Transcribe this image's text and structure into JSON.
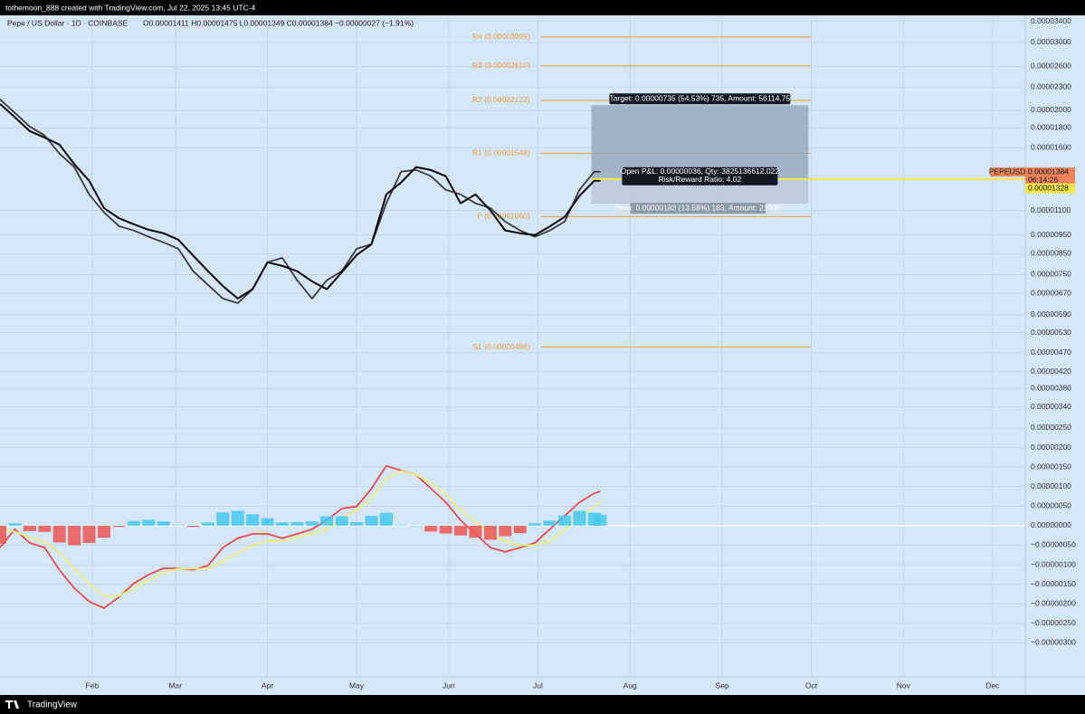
{
  "header": {
    "author_line": "tothemoon_888 created with TradingView.com, Jul 22, 2025 13:45 UTC-4"
  },
  "chart_data": {
    "type": "line",
    "title": "Pepe / US Dollar · 1D · COINBASE",
    "ohlc_text": "O0.00001411 H0.00001475 L0.00001349 C0.00001384 −0.00000027 (−1.91%)",
    "log_scale": true,
    "grid": true,
    "x": [
      "2025-01-01",
      "2025-01-06",
      "2025-01-11",
      "2025-01-16",
      "2025-01-21",
      "2025-01-26",
      "2025-01-31",
      "2025-02-05",
      "2025-02-10",
      "2025-02-15",
      "2025-02-20",
      "2025-02-25",
      "2025-03-02",
      "2025-03-07",
      "2025-03-12",
      "2025-03-17",
      "2025-03-22",
      "2025-03-27",
      "2025-04-01",
      "2025-04-06",
      "2025-04-11",
      "2025-04-16",
      "2025-04-21",
      "2025-04-26",
      "2025-05-01",
      "2025-05-06",
      "2025-05-11",
      "2025-05-16",
      "2025-05-21",
      "2025-05-26",
      "2025-05-31",
      "2025-06-05",
      "2025-06-10",
      "2025-06-15",
      "2025-06-20",
      "2025-06-25",
      "2025-06-30",
      "2025-07-05",
      "2025-07-10",
      "2025-07-15",
      "2025-07-20",
      "2025-07-22"
    ],
    "xlim": [
      "2025-01-01",
      "2025-12-12"
    ],
    "xticks": [
      {
        "value": "2025-02-01",
        "label": "Feb"
      },
      {
        "value": "2025-03-01",
        "label": "Mar"
      },
      {
        "value": "2025-04-01",
        "label": "Apr"
      },
      {
        "value": "2025-05-01",
        "label": "May"
      },
      {
        "value": "2025-06-01",
        "label": "Jun"
      },
      {
        "value": "2025-07-01",
        "label": "Jul"
      },
      {
        "value": "2025-08-01",
        "label": "Aug"
      },
      {
        "value": "2025-09-01",
        "label": "Sep"
      },
      {
        "value": "2025-10-01",
        "label": "Oct"
      },
      {
        "value": "2025-11-01",
        "label": "Nov"
      },
      {
        "value": "2025-12-01",
        "label": "Dec"
      }
    ],
    "ylim": [
      6.78e-07,
      3.527e-05
    ],
    "yticks": [
      {
        "value": 3.4e-05,
        "label": "0.00003400"
      },
      {
        "value": 3e-05,
        "label": "0.00003000"
      },
      {
        "value": 2.6e-05,
        "label": "0.00002600"
      },
      {
        "value": 2.3e-05,
        "label": "0.00002300"
      },
      {
        "value": 2e-05,
        "label": "0.00002000"
      },
      {
        "value": 1.8e-05,
        "label": "0.00001800"
      },
      {
        "value": 1.6e-05,
        "label": "0.00001600"
      },
      {
        "value": 1.1e-05,
        "label": "0.00001100"
      },
      {
        "value": 9.5e-06,
        "label": "0.00000950"
      },
      {
        "value": 8.5e-06,
        "label": "0.00000850"
      },
      {
        "value": 7.5e-06,
        "label": "0.00000750"
      },
      {
        "value": 6.7e-06,
        "label": "0.00000670"
      },
      {
        "value": 5.9e-06,
        "label": "0.00000590"
      },
      {
        "value": 5.3e-06,
        "label": "0.00000530"
      },
      {
        "value": 4.7e-06,
        "label": "0.00000470"
      },
      {
        "value": 4.2e-06,
        "label": "0.00000420"
      },
      {
        "value": 3.8e-06,
        "label": "0.00000380"
      },
      {
        "value": 3.4e-06,
        "label": "0.00000340"
      }
    ],
    "y2lim": [
      -3.87e-06,
      1.306e-05
    ],
    "y2ticks": [
      {
        "value": 2.5e-06,
        "label": "0.00000250"
      },
      {
        "value": 2e-06,
        "label": "0.00000200"
      },
      {
        "value": 1.5e-06,
        "label": "0.00000150"
      },
      {
        "value": 1e-06,
        "label": "0.00000100"
      },
      {
        "value": 5e-07,
        "label": "0.00000050"
      },
      {
        "value": 0,
        "label": "0.00000000"
      },
      {
        "value": -5e-07,
        "label": "−0.00000050"
      },
      {
        "value": -1e-06,
        "label": "−0.00000100"
      },
      {
        "value": -1.5e-06,
        "label": "−0.00000150"
      },
      {
        "value": -2e-06,
        "label": "−0.00000200"
      },
      {
        "value": -2.5e-06,
        "label": "−0.00000250"
      },
      {
        "value": -3e-06,
        "label": "−0.00000300"
      }
    ],
    "series": [
      {
        "name": "PEPEUSD",
        "color": "#3a3a3a",
        "values": [
          2.136e-05,
          1.97e-05,
          1.816e-05,
          1.721e-05,
          1.545e-05,
          1.425e-05,
          1.211e-05,
          1.087e-05,
          1.002e-05,
          9.76e-06,
          9.4e-06,
          9.09e-06,
          8.75e-06,
          7.65e-06,
          7.05e-06,
          6.5e-06,
          6.32e-06,
          6.87e-06,
          8.07e-06,
          8.29e-06,
          7.25e-06,
          6.5e-06,
          7.25e-06,
          7.65e-06,
          8.75e-06,
          8.99e-06,
          1.148e-05,
          1.387e-05,
          1.402e-05,
          1.35e-05,
          1.244e-05,
          1.211e-05,
          1.148e-05,
          1.116e-05,
          1.029e-05,
          9.76e-06,
          9.4e-06,
          9.76e-06,
          1.029e-05,
          1.244e-05,
          1.387e-05,
          1.384e-05
        ]
      },
      {
        "color": "#000000",
        "values": [
          2.079e-05,
          1.92e-05,
          1.768e-05,
          1.7e-05,
          1.63e-05,
          1.45e-05,
          1.314e-05,
          1.116e-05,
          1.05e-05,
          1.013e-05,
          9.8e-06,
          9.6e-06,
          9.24e-06,
          8.4e-06,
          7.65e-06,
          7e-06,
          6.5e-06,
          6.87e-06,
          8.07e-06,
          7.9e-06,
          7.65e-06,
          7.2e-06,
          6.87e-06,
          7.6e-06,
          8.43e-06,
          8.99e-06,
          1.211e-05,
          1.3e-05,
          1.425e-05,
          1.4e-05,
          1.35e-05,
          1.148e-05,
          1.211e-05,
          1.1e-05,
          9.76e-06,
          9.6e-06,
          9.49e-06,
          1e-05,
          1.058e-05,
          1.2e-05,
          1.314e-05,
          1.314e-05
        ]
      },
      {
        "axis": "y2",
        "color": "#f04a4a",
        "values": [
          -5.6e-07,
          -9e-08,
          -4.4e-07,
          -5.6e-07,
          -1.13e-06,
          -1.6e-06,
          -1.94e-06,
          -2.11e-06,
          -1.83e-06,
          -1.48e-06,
          -1.25e-06,
          -1.09e-06,
          -1.09e-06,
          -1.13e-06,
          -1.02e-06,
          -5.6e-07,
          -3.2e-07,
          -2.1e-07,
          -2.1e-07,
          -3.2e-07,
          -2.1e-07,
          -9e-08,
          1.4e-07,
          4.4e-07,
          4.9e-07,
          9.5e-07,
          1.53e-06,
          1.41e-06,
          1.3e-06,
          9.5e-07,
          6e-07,
          1.4e-07,
          -2.1e-07,
          -5.6e-07,
          -6.7e-07,
          -5.6e-07,
          -4.4e-07,
          -9e-08,
          2.5e-07,
          6e-07,
          8.3e-07,
          8.8e-07
        ]
      },
      {
        "axis": "y2",
        "color": "#eef07a",
        "values": [
          -1e-07,
          -1.5e-07,
          -3e-07,
          -4e-07,
          -7e-07,
          -1.1e-06,
          -1.5e-06,
          -1.8e-06,
          -1.8e-06,
          -1.6e-06,
          -1.4e-06,
          -1.2e-06,
          -1.1e-06,
          -1.1e-06,
          -1.1e-06,
          -9e-07,
          -7e-07,
          -5e-07,
          -4e-07,
          -4e-07,
          -3e-07,
          -2e-07,
          -1e-07,
          2e-07,
          4e-07,
          7e-07,
          1.2e-06,
          1.4e-06,
          1.3e-06,
          1.1e-06,
          8e-07,
          4e-07,
          1e-07,
          -2e-07,
          -4e-07,
          -5e-07,
          -5e-07,
          -4e-07,
          -1e-07,
          2e-07,
          5e-07,
          6e-07
        ]
      },
      {
        "axis": "y2",
        "type": "bar",
        "colors": {
          "positive": "#45c8f0",
          "negative": "#ef5350"
        },
        "values": [
          -4.6e-07,
          6e-08,
          -1.4e-07,
          -1.6e-07,
          -4.3e-07,
          -5e-07,
          -4.4e-07,
          -3.1e-07,
          -3e-08,
          1.2e-07,
          1.5e-07,
          1.1e-07,
          1e-08,
          -3e-08,
          8e-08,
          3.4e-07,
          3.8e-07,
          2.9e-07,
          1.9e-07,
          8e-08,
          9e-08,
          1.1e-07,
          2.4e-07,
          2.4e-07,
          9e-08,
          2.5e-07,
          3.3e-07,
          1e-08,
          0,
          -1.5e-07,
          -2e-07,
          -2.5e-07,
          -3.1e-07,
          -3.6e-07,
          -2.7e-07,
          -1.9e-07,
          6e-08,
          1.3e-07,
          2.6e-07,
          3.8e-07,
          3.3e-07,
          2.8e-07
        ]
      }
    ],
    "pivot_color": "#f0a030",
    "pivot_range": [
      "2025-07-02",
      "2025-10-01"
    ],
    "pivots": [
      {
        "label": "R4 (0.00003099)",
        "value": 3.099e-05
      },
      {
        "label": "R3 (0.00002610)",
        "value": 2.61e-05
      },
      {
        "label": "R2 (0.00002122)",
        "value": 2.122e-05
      },
      {
        "label": "R1 (0.00001548)",
        "value": 1.548e-05
      },
      {
        "label": "P (0.00001060)",
        "value": 1.06e-05
      },
      {
        "label": "S1 (0.00000486)",
        "value": 4.86e-06
      }
    ],
    "position": {
      "range": [
        "2025-07-19",
        "2025-09-30"
      ],
      "entry": 1.328e-05,
      "target": {
        "label": "Target: 0.00000735 (54.53%) 735, Amount: 56114.75",
        "offset": 7.35e-06
      },
      "stop": {
        "label": "Stop: 0.00000183 (13.58%) 183, Amount: 21000",
        "offset": 1.83e-06
      },
      "pnl_label": "Open P&L: 0.00000036, Qty: 3825136612.022",
      "rr_label": "Risk/Reward Ratio: 4.02"
    },
    "countdown": "06:14:26"
  },
  "footer": {
    "brand": "TradingView"
  }
}
